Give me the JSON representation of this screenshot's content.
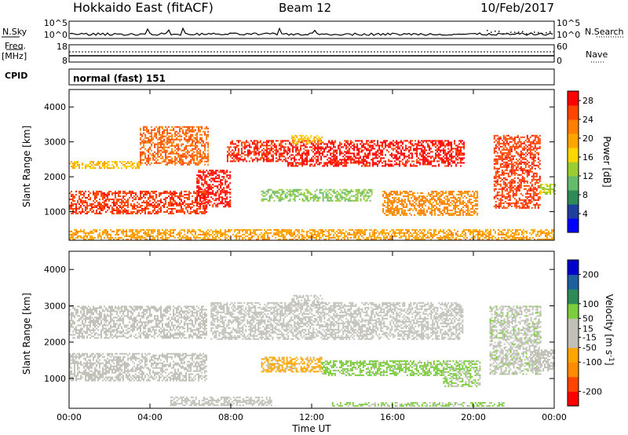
{
  "header": {
    "station": "Hokkaido East (fitACF)",
    "beam": "Beam 12",
    "date": "10/Feb/2017"
  },
  "noise_panel": {
    "left_label": "N.Sky",
    "right_label": "N.Search",
    "left_ticks": [
      "10^5",
      "10^0"
    ],
    "right_ticks": [
      "10^5",
      "10^0"
    ]
  },
  "freq_panel": {
    "left_label_line1": "Freq.",
    "left_label_line2": "[MHz]",
    "right_label": "Nave",
    "left_ticks": [
      "18",
      "8"
    ],
    "right_ticks": [
      "60",
      "0"
    ]
  },
  "cpid_panel": {
    "label": "CPID",
    "value": "normal (fast) 151"
  },
  "colors": {
    "power_scale": [
      "#0000ff",
      "#1f3f9f",
      "#2e8b57",
      "#66bb6a",
      "#9acd32",
      "#ffd700",
      "#ffa500",
      "#ff7f00",
      "#ff4500",
      "#ff0000"
    ],
    "velocity_scale": [
      "#ff0000",
      "#ff4500",
      "#ff8c00",
      "#ffa500",
      "#c0c0b8",
      "#c0c0b8",
      "#7ccd3c",
      "#2e8b57",
      "#1e5f9f",
      "#0000cd"
    ],
    "ground_scatter": "#c0c0b8"
  },
  "chart_data": [
    {
      "type": "heatmap",
      "title": "",
      "xlabel": "",
      "ylabel": "Slant Range [km]",
      "x_ticks": [
        "00:00",
        "04:00",
        "08:00",
        "12:00",
        "16:00",
        "20:00",
        "00:00"
      ],
      "x_range_hours": [
        0,
        24
      ],
      "ylim": [
        180,
        4500
      ],
      "y_ticks": [
        1000,
        2000,
        3000,
        4000
      ],
      "colorbar": {
        "label": "Power [dB]",
        "ticks": [
          4,
          8,
          12,
          16,
          20,
          24,
          28
        ],
        "range": [
          0,
          30
        ]
      },
      "regions": [
        {
          "t": [
            0.0,
            6.8
          ],
          "range_km": [
            950,
            1600
          ],
          "value": 26
        },
        {
          "t": [
            0.0,
            3.5
          ],
          "range_km": [
            2250,
            2450
          ],
          "value": 18
        },
        {
          "t": [
            3.5,
            6.9
          ],
          "range_km": [
            2350,
            3450
          ],
          "value": 24
        },
        {
          "t": [
            6.3,
            8.0
          ],
          "range_km": [
            1150,
            2200
          ],
          "value": 28
        },
        {
          "t": [
            7.8,
            10.8
          ],
          "range_km": [
            2450,
            3050
          ],
          "value": 27
        },
        {
          "t": [
            10.8,
            19.5
          ],
          "range_km": [
            2300,
            3050
          ],
          "value": 28
        },
        {
          "t": [
            11.0,
            12.5
          ],
          "range_km": [
            2950,
            3200
          ],
          "value": 18
        },
        {
          "t": [
            9.5,
            15.0
          ],
          "range_km": [
            1300,
            1650
          ],
          "value": 12
        },
        {
          "t": [
            15.5,
            20.2
          ],
          "range_km": [
            900,
            1600
          ],
          "value": 22
        },
        {
          "t": [
            21.0,
            23.3
          ],
          "range_km": [
            1100,
            3200
          ],
          "value": 26
        },
        {
          "t": [
            23.3,
            24.0
          ],
          "range_km": [
            1500,
            1800
          ],
          "value": 14
        },
        {
          "t": [
            0.0,
            24.0
          ],
          "range_km": [
            200,
            500
          ],
          "value": 20
        }
      ]
    },
    {
      "type": "heatmap",
      "title": "",
      "xlabel": "Time UT",
      "ylabel": "Slant Range [km]",
      "x_ticks": [
        "00:00",
        "04:00",
        "08:00",
        "12:00",
        "16:00",
        "20:00",
        "00:00"
      ],
      "x_range_hours": [
        0,
        24
      ],
      "ylim": [
        180,
        4500
      ],
      "y_ticks": [
        1000,
        2000,
        3000,
        4000
      ],
      "colorbar": {
        "label": "Velocity [m s^-1]",
        "ticks": [
          200,
          100,
          50,
          15,
          -15,
          -50,
          -100,
          -200
        ],
        "range": [
          -250,
          250
        ]
      },
      "regions": [
        {
          "t": [
            0.0,
            6.8
          ],
          "range_km": [
            950,
            1700
          ],
          "value": 0,
          "ground_scatter": true
        },
        {
          "t": [
            0.0,
            6.8
          ],
          "range_km": [
            2100,
            3000
          ],
          "value": 0,
          "ground_scatter": true
        },
        {
          "t": [
            7.0,
            19.5
          ],
          "range_km": [
            2100,
            3100
          ],
          "value": 0,
          "ground_scatter": true
        },
        {
          "t": [
            11.0,
            12.5
          ],
          "range_km": [
            3000,
            3300
          ],
          "value": 0,
          "ground_scatter": true
        },
        {
          "t": [
            9.5,
            12.5
          ],
          "range_km": [
            1200,
            1600
          ],
          "value": -70
        },
        {
          "t": [
            12.5,
            18.5
          ],
          "range_km": [
            1100,
            1500
          ],
          "value": 70
        },
        {
          "t": [
            18.5,
            20.3
          ],
          "range_km": [
            800,
            1500
          ],
          "value": 60
        },
        {
          "t": [
            20.8,
            23.3
          ],
          "range_km": [
            1100,
            3000
          ],
          "value": 30
        },
        {
          "t": [
            22.8,
            24.0
          ],
          "range_km": [
            1200,
            1800
          ],
          "value": 0,
          "ground_scatter": true
        },
        {
          "t": [
            5.0,
            10.0
          ],
          "range_km": [
            250,
            500
          ],
          "value": 0,
          "ground_scatter": true
        },
        {
          "t": [
            13.0,
            21.5
          ],
          "range_km": [
            250,
            350
          ],
          "value": 60
        }
      ]
    }
  ]
}
